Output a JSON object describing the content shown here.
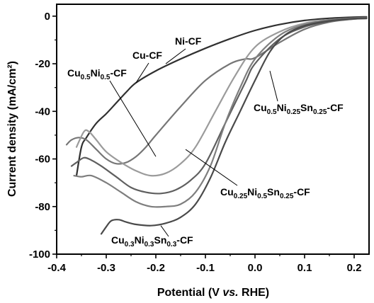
{
  "chart_data": {
    "type": "line",
    "xlabel_parts": [
      "Potential (V ",
      "vs.",
      " RHE)"
    ],
    "ylabel": "Current density (mA/cm²)",
    "xlim": [
      -0.4,
      0.23
    ],
    "ylim": [
      -100,
      5
    ],
    "x_ticks": [
      -0.4,
      -0.3,
      -0.2,
      -0.1,
      0.0,
      0.1,
      0.2
    ],
    "x_tick_labels": [
      "-0.4",
      "-0.3",
      "-0.2",
      "-0.1",
      "0.0",
      "0.1",
      "0.2"
    ],
    "y_ticks": [
      0,
      -20,
      -40,
      -60,
      -80,
      -100
    ],
    "y_tick_labels": [
      "0",
      "-20",
      "-40",
      "-60",
      "-80",
      "-100"
    ],
    "grid": false,
    "series": [
      {
        "name": "Ni-CF",
        "color": "#303030",
        "points": [
          [
            -0.36,
            -67
          ],
          [
            -0.35,
            -55
          ],
          [
            -0.34,
            -51
          ],
          [
            -0.32,
            -45
          ],
          [
            -0.3,
            -41
          ],
          [
            -0.28,
            -36.5
          ],
          [
            -0.26,
            -32
          ],
          [
            -0.24,
            -28
          ],
          [
            -0.2,
            -23
          ],
          [
            -0.15,
            -18
          ],
          [
            -0.1,
            -13.5
          ],
          [
            -0.05,
            -9.5
          ],
          [
            0.0,
            -6
          ],
          [
            0.05,
            -3.5
          ],
          [
            0.1,
            -1.8
          ],
          [
            0.15,
            -0.9
          ],
          [
            0.2,
            -0.4
          ],
          [
            0.225,
            -0.3
          ]
        ]
      },
      {
        "name": "Cu-CF",
        "color": "#767676",
        "points": [
          [
            -0.38,
            -54
          ],
          [
            -0.37,
            -52
          ],
          [
            -0.355,
            -51
          ],
          [
            -0.34,
            -52
          ],
          [
            -0.32,
            -56
          ],
          [
            -0.3,
            -60
          ],
          [
            -0.28,
            -62
          ],
          [
            -0.26,
            -61.5
          ],
          [
            -0.24,
            -59
          ],
          [
            -0.22,
            -55
          ],
          [
            -0.2,
            -50
          ],
          [
            -0.15,
            -38
          ],
          [
            -0.1,
            -27
          ],
          [
            -0.05,
            -20
          ],
          [
            -0.02,
            -18
          ],
          [
            0.0,
            -17.5
          ],
          [
            0.05,
            -11
          ],
          [
            0.1,
            -5.5
          ],
          [
            0.15,
            -2.5
          ],
          [
            0.2,
            -1.2
          ],
          [
            0.225,
            -0.9
          ]
        ]
      },
      {
        "name": "Cu0.5Ni0.5-CF",
        "color": "#5f5f5f",
        "points": [
          [
            -0.37,
            -63
          ],
          [
            -0.36,
            -61.5
          ],
          [
            -0.345,
            -59.5
          ],
          [
            -0.33,
            -60.5
          ],
          [
            -0.31,
            -63
          ],
          [
            -0.28,
            -67.5
          ],
          [
            -0.25,
            -72
          ],
          [
            -0.22,
            -74
          ],
          [
            -0.19,
            -74.5
          ],
          [
            -0.16,
            -73
          ],
          [
            -0.13,
            -69
          ],
          [
            -0.1,
            -62
          ],
          [
            -0.06,
            -45
          ],
          [
            -0.02,
            -28
          ],
          [
            0.0,
            -20
          ],
          [
            0.05,
            -9.5
          ],
          [
            0.1,
            -4.5
          ],
          [
            0.15,
            -2.2
          ],
          [
            0.2,
            -1.2
          ],
          [
            0.225,
            -1
          ]
        ]
      },
      {
        "name": "Cu0.5Ni0.25Sn0.25-CF",
        "color": "#9b9b9b",
        "points": [
          [
            -0.36,
            -55
          ],
          [
            -0.345,
            -48.5
          ],
          [
            -0.335,
            -48.5
          ],
          [
            -0.32,
            -52
          ],
          [
            -0.3,
            -57
          ],
          [
            -0.27,
            -61.5
          ],
          [
            -0.24,
            -65
          ],
          [
            -0.21,
            -67
          ],
          [
            -0.18,
            -66
          ],
          [
            -0.15,
            -62
          ],
          [
            -0.12,
            -55
          ],
          [
            -0.08,
            -40
          ],
          [
            -0.04,
            -25
          ],
          [
            0.0,
            -13
          ],
          [
            0.05,
            -6.5
          ],
          [
            0.1,
            -3
          ],
          [
            0.15,
            -1.5
          ],
          [
            0.2,
            -0.9
          ],
          [
            0.225,
            -0.7
          ]
        ]
      },
      {
        "name": "Cu0.25Ni0.5Sn0.25-CF",
        "color": "#7e7e7e",
        "points": [
          [
            -0.365,
            -67
          ],
          [
            -0.35,
            -67.5
          ],
          [
            -0.33,
            -67
          ],
          [
            -0.3,
            -70
          ],
          [
            -0.27,
            -74
          ],
          [
            -0.24,
            -78
          ],
          [
            -0.21,
            -80
          ],
          [
            -0.18,
            -80
          ],
          [
            -0.15,
            -79
          ],
          [
            -0.12,
            -74
          ],
          [
            -0.09,
            -63
          ],
          [
            -0.06,
            -45
          ],
          [
            -0.03,
            -30
          ],
          [
            0.0,
            -18
          ],
          [
            0.05,
            -8
          ],
          [
            0.1,
            -3.5
          ],
          [
            0.15,
            -1.6
          ],
          [
            0.2,
            -0.8
          ],
          [
            0.225,
            -0.6
          ]
        ]
      },
      {
        "name": "Cu0.3Ni0.3Sn0.3-CF",
        "color": "#4a4a4a",
        "points": [
          [
            -0.31,
            -91.5
          ],
          [
            -0.3,
            -88.5
          ],
          [
            -0.29,
            -86
          ],
          [
            -0.275,
            -85.5
          ],
          [
            -0.26,
            -86.5
          ],
          [
            -0.24,
            -87.5
          ],
          [
            -0.21,
            -88
          ],
          [
            -0.18,
            -87
          ],
          [
            -0.15,
            -84.5
          ],
          [
            -0.12,
            -79
          ],
          [
            -0.09,
            -68
          ],
          [
            -0.06,
            -53
          ],
          [
            -0.03,
            -40
          ],
          [
            0.0,
            -27
          ],
          [
            0.03,
            -15
          ],
          [
            0.06,
            -8
          ],
          [
            0.1,
            -4
          ],
          [
            0.15,
            -2
          ],
          [
            0.2,
            -1
          ],
          [
            0.225,
            -0.8
          ]
        ]
      }
    ],
    "annotations": [
      {
        "series": "Ni-CF",
        "base": "Ni-CF",
        "sub": "",
        "rest": "",
        "point": [
          -0.18,
          -20
        ]
      },
      {
        "series": "Cu-CF",
        "base": "Cu-CF",
        "sub": "",
        "rest": "",
        "point": [
          -0.24,
          -28
        ]
      },
      {
        "series": "Cu0.5Ni0.5-CF",
        "parts": [
          [
            "Cu",
            ""
          ],
          [
            "0.5",
            "sub"
          ],
          [
            "Ni",
            ""
          ],
          [
            "0.5",
            "sub"
          ],
          [
            "-CF",
            ""
          ]
        ],
        "point": [
          -0.2,
          -59
        ]
      },
      {
        "series": "Cu0.5Ni0.25Sn0.25-CF",
        "parts": [
          [
            "Cu",
            ""
          ],
          [
            "0.5",
            "sub"
          ],
          [
            "Ni",
            ""
          ],
          [
            "0.25",
            "sub"
          ],
          [
            "Sn",
            ""
          ],
          [
            "0.25",
            "sub"
          ],
          [
            "-CF",
            ""
          ]
        ],
        "point": [
          0.03,
          -23
        ]
      },
      {
        "series": "Cu0.25Ni0.5Sn0.25-CF",
        "parts": [
          [
            "Cu",
            ""
          ],
          [
            "0.25",
            "sub"
          ],
          [
            "Ni",
            ""
          ],
          [
            "0.5",
            "sub"
          ],
          [
            "Sn",
            ""
          ],
          [
            "0.25",
            "sub"
          ],
          [
            "-CF",
            ""
          ]
        ],
        "point": [
          -0.14,
          -56
        ]
      },
      {
        "series": "Cu0.3Ni0.3Sn0.3-CF",
        "parts": [
          [
            "Cu",
            ""
          ],
          [
            "0.3",
            "sub"
          ],
          [
            "Ni",
            ""
          ],
          [
            "0.3",
            "sub"
          ],
          [
            "Sn",
            ""
          ],
          [
            "0.3",
            "sub"
          ],
          [
            "-CF",
            ""
          ]
        ],
        "point": [
          -0.19,
          -88
        ]
      }
    ]
  }
}
